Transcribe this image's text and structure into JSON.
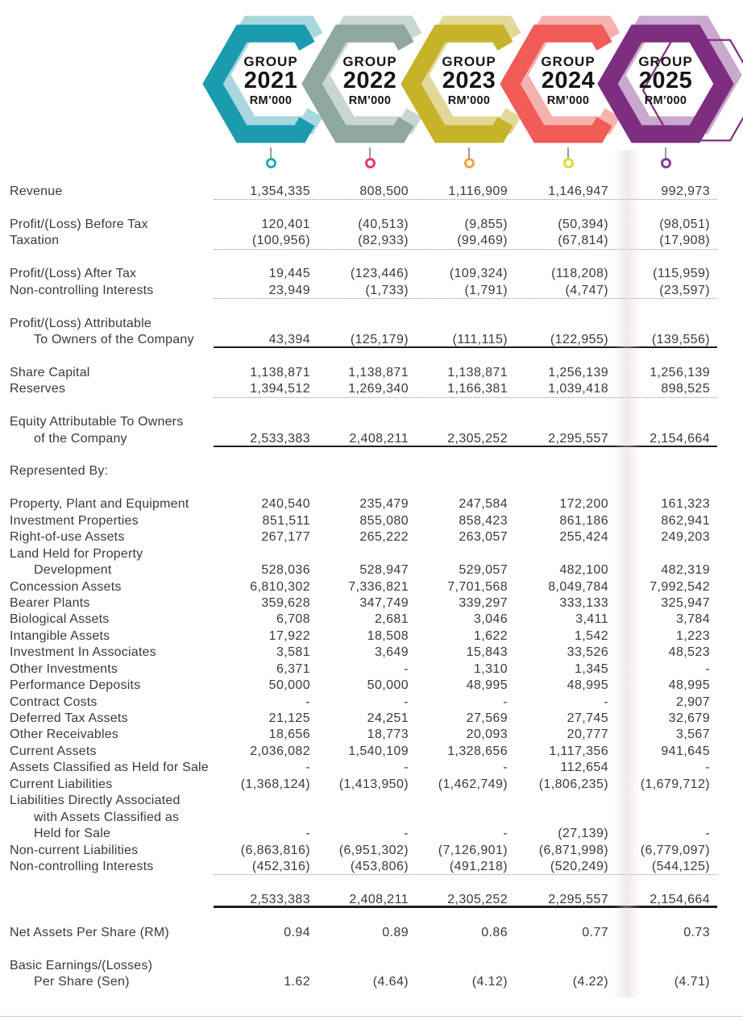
{
  "header": {
    "badges": [
      {
        "group_label": "GROUP",
        "year": "2021",
        "unit": "RM’000",
        "shape": "open",
        "color": "#1b9cae",
        "color_light": "#a8d8de",
        "pin_color": "#25a9ba"
      },
      {
        "group_label": "GROUP",
        "year": "2022",
        "unit": "RM’000",
        "shape": "open",
        "color": "#8ea79f",
        "color_light": "#c9d6d1",
        "pin_color": "#e63a5e"
      },
      {
        "group_label": "GROUP",
        "year": "2023",
        "unit": "RM’000",
        "shape": "open",
        "color": "#c6b32a",
        "color_light": "#e2d897",
        "pin_color": "#f0a244"
      },
      {
        "group_label": "GROUP",
        "year": "2024",
        "unit": "RM’000",
        "shape": "open",
        "color": "#f15b58",
        "color_light": "#f6b2ae",
        "pin_color": "#e2d93b"
      },
      {
        "group_label": "GROUP",
        "year": "2025",
        "unit": "RM’000",
        "shape": "closed-with-outline",
        "color": "#7e2e80",
        "color_light": "#c9aace",
        "pin_color": "#7f3e9c"
      }
    ]
  },
  "table": {
    "rows": [
      {
        "label": "Revenue",
        "indent": 0,
        "values": [
          "1,354,335",
          "808,500",
          "1,116,909",
          "1,146,947",
          "992,973"
        ],
        "rule": "dotted"
      },
      {
        "type": "spacer"
      },
      {
        "label": "Profit/(Loss) Before Tax",
        "indent": 0,
        "values": [
          "120,401",
          "(40,513)",
          "(9,855)",
          "(50,394)",
          "(98,051)"
        ]
      },
      {
        "label": "Taxation",
        "indent": 0,
        "values": [
          "(100,956)",
          "(82,933)",
          "(99,469)",
          "(67,814)",
          "(17,908)"
        ],
        "rule": "dotted"
      },
      {
        "type": "spacer"
      },
      {
        "label": "Profit/(Loss) After Tax",
        "indent": 0,
        "values": [
          "19,445",
          "(123,446)",
          "(109,324)",
          "(118,208)",
          "(115,959)"
        ]
      },
      {
        "label": "Non-controlling Interests",
        "indent": 0,
        "values": [
          "23,949",
          "(1,733)",
          "(1,791)",
          "(4,747)",
          "(23,597)"
        ],
        "rule": "dotted"
      },
      {
        "type": "spacer"
      },
      {
        "label": "Profit/(Loss) Attributable",
        "indent": 0,
        "values": null
      },
      {
        "label": "To Owners of the Company",
        "indent": 1,
        "values": [
          "43,394",
          "(125,179)",
          "(111,115)",
          "(122,955)",
          "(139,556)"
        ],
        "rule": "solid"
      },
      {
        "type": "spacer"
      },
      {
        "label": "Share Capital",
        "indent": 0,
        "values": [
          "1,138,871",
          "1,138,871",
          "1,138,871",
          "1,256,139",
          "1,256,139"
        ]
      },
      {
        "label": "Reserves",
        "indent": 0,
        "values": [
          "1,394,512",
          "1,269,340",
          "1,166,381",
          "1,039,418",
          "898,525"
        ],
        "rule": "dotted"
      },
      {
        "type": "spacer"
      },
      {
        "label": "Equity Attributable To Owners",
        "indent": 0,
        "values": null
      },
      {
        "label": "of the Company",
        "indent": 1,
        "values": [
          "2,533,383",
          "2,408,211",
          "2,305,252",
          "2,295,557",
          "2,154,664"
        ],
        "rule": "solid"
      },
      {
        "type": "spacer"
      },
      {
        "label": "Represented By:",
        "indent": 0,
        "values": null
      },
      {
        "type": "spacer"
      },
      {
        "label": "Property, Plant and Equipment",
        "indent": 0,
        "values": [
          "240,540",
          "235,479",
          "247,584",
          "172,200",
          "161,323"
        ]
      },
      {
        "label": "Investment Properties",
        "indent": 0,
        "values": [
          "851,511",
          "855,080",
          "858,423",
          "861,186",
          "862,941"
        ]
      },
      {
        "label": "Right-of-use Assets",
        "indent": 0,
        "values": [
          "267,177",
          "265,222",
          "263,057",
          "255,424",
          "249,203"
        ]
      },
      {
        "label": "Land Held for Property",
        "indent": 0,
        "values": null
      },
      {
        "label": "Development",
        "indent": 1,
        "values": [
          "528,036",
          "528,947",
          "529,057",
          "482,100",
          "482,319"
        ]
      },
      {
        "label": "Concession Assets",
        "indent": 0,
        "values": [
          "6,810,302",
          "7,336,821",
          "7,701,568",
          "8,049,784",
          "7,992,542"
        ]
      },
      {
        "label": "Bearer Plants",
        "indent": 0,
        "values": [
          "359,628",
          "347,749",
          "339,297",
          "333,133",
          "325,947"
        ]
      },
      {
        "label": "Biological Assets",
        "indent": 0,
        "values": [
          "6,708",
          "2,681",
          "3,046",
          "3,411",
          "3,784"
        ]
      },
      {
        "label": "Intangible Assets",
        "indent": 0,
        "values": [
          "17,922",
          "18,508",
          "1,622",
          "1,542",
          "1,223"
        ]
      },
      {
        "label": "Investment In Associates",
        "indent": 0,
        "values": [
          "3,581",
          "3,649",
          "15,843",
          "33,526",
          "48,523"
        ]
      },
      {
        "label": "Other Investments",
        "indent": 0,
        "values": [
          "6,371",
          "-",
          "1,310",
          "1,345",
          "-"
        ]
      },
      {
        "label": "Performance Deposits",
        "indent": 0,
        "values": [
          "50,000",
          "50,000",
          "48,995",
          "48,995",
          "48,995"
        ]
      },
      {
        "label": "Contract Costs",
        "indent": 0,
        "values": [
          "-",
          "-",
          "-",
          "-",
          "2,907"
        ]
      },
      {
        "label": "Deferred Tax Assets",
        "indent": 0,
        "values": [
          "21,125",
          "24,251",
          "27,569",
          "27,745",
          "32,679"
        ]
      },
      {
        "label": "Other Receivables",
        "indent": 0,
        "values": [
          "18,656",
          "18,773",
          "20,093",
          "20,777",
          "3,567"
        ]
      },
      {
        "label": "Current Assets",
        "indent": 0,
        "values": [
          "2,036,082",
          "1,540,109",
          "1,328,656",
          "1,117,356",
          "941,645"
        ]
      },
      {
        "label": "Assets Classified as Held for Sale",
        "indent": 0,
        "values": [
          "-",
          "-",
          "-",
          "112,654",
          "-"
        ]
      },
      {
        "label": "Current Liabilities",
        "indent": 0,
        "values": [
          "(1,368,124)",
          "(1,413,950)",
          "(1,462,749)",
          "(1,806,235)",
          "(1,679,712)"
        ]
      },
      {
        "label": "Liabilities Directly Associated",
        "indent": 0,
        "values": null
      },
      {
        "label": "with Assets Classified as",
        "indent": 1,
        "values": null
      },
      {
        "label": "Held for Sale",
        "indent": 1,
        "values": [
          "-",
          "-",
          "-",
          "(27,139)",
          "-"
        ]
      },
      {
        "label": "Non-current Liabilities",
        "indent": 0,
        "values": [
          "(6,863,816)",
          "(6,951,302)",
          "(7,126,901)",
          "(6,871,998)",
          "(6,779,097)"
        ]
      },
      {
        "label": "Non-controlling Interests",
        "indent": 0,
        "values": [
          "(452,316)",
          "(453,806)",
          "(491,218)",
          "(520,249)",
          "(544,125)"
        ],
        "rule": "dotted"
      },
      {
        "type": "spacer"
      },
      {
        "label": "",
        "indent": 0,
        "values": [
          "2,533,383",
          "2,408,211",
          "2,305,252",
          "2,295,557",
          "2,154,664"
        ],
        "rule": "thick"
      },
      {
        "type": "spacer"
      },
      {
        "label": "Net Assets Per Share (RM)",
        "indent": 0,
        "values": [
          "0.94",
          "0.89",
          "0.86",
          "0.77",
          "0.73"
        ]
      },
      {
        "type": "spacer"
      },
      {
        "label": "Basic Earnings/(Losses)",
        "indent": 0,
        "values": null
      },
      {
        "label": "Per Share (Sen)",
        "indent": 1,
        "values": [
          "1.62",
          "(4.64)",
          "(4.12)",
          "(4.22)",
          "(4.71)"
        ]
      }
    ]
  }
}
